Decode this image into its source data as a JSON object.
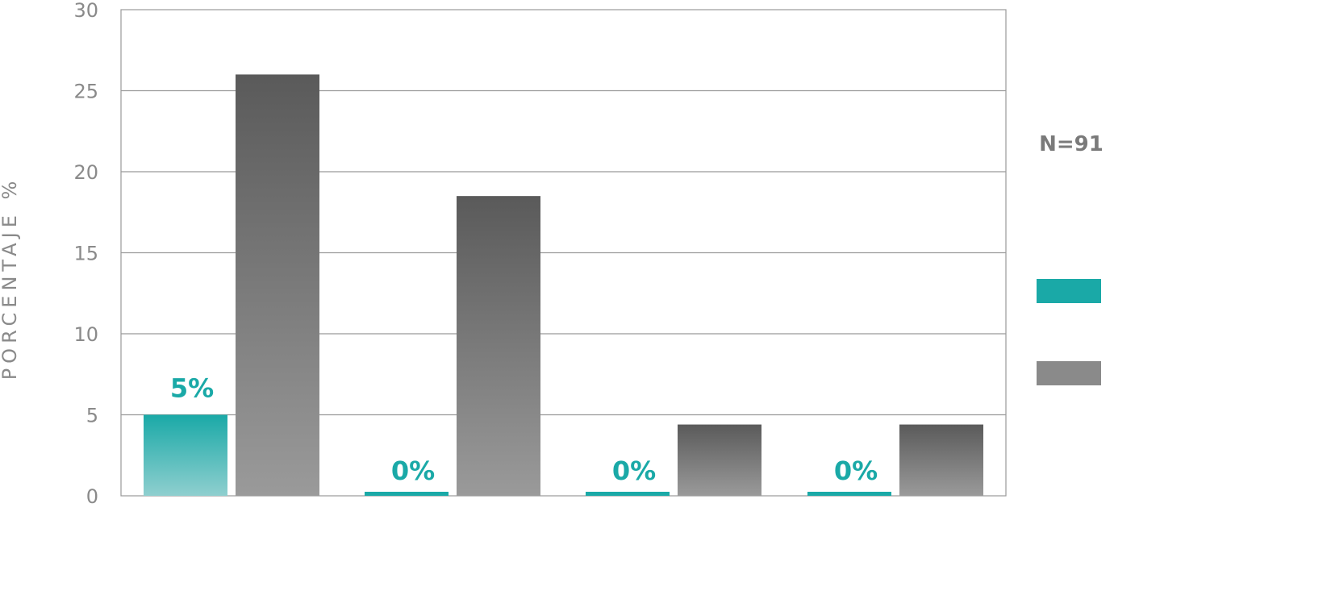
{
  "chart_data": {
    "type": "bar",
    "ylabel": "PORCENTAJE %",
    "ylim": [
      0,
      30
    ],
    "yticks": [
      0,
      5,
      10,
      15,
      20,
      25,
      30
    ],
    "grid": true,
    "legend_position": "right",
    "annotation": "N=91",
    "categories": [
      "",
      "",
      "",
      ""
    ],
    "series": [
      {
        "values": [
          5,
          0,
          0,
          0
        ],
        "labels": [
          "5%",
          "0%",
          "0%",
          "0%"
        ],
        "color": "#1aa9a7"
      },
      {
        "values": [
          26,
          18.5,
          4.4,
          4.4
        ],
        "color": "#7d7d7d"
      }
    ]
  },
  "colors": {
    "teal": "#1aa9a7",
    "gray": "#7d7d7d",
    "grid": "#9a9a9a",
    "text": "#8a8a8a"
  }
}
